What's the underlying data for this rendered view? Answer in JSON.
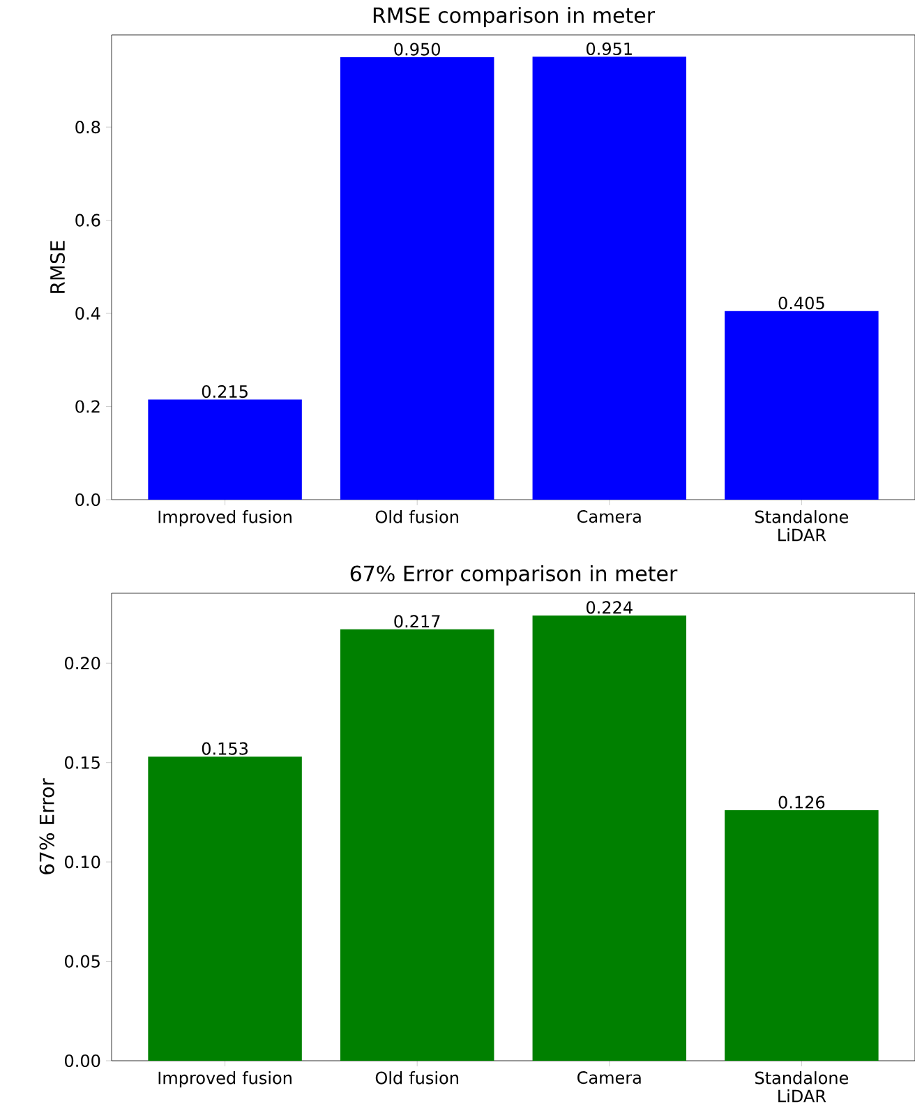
{
  "chart_data": [
    {
      "type": "bar",
      "title": "RMSE comparison in meter",
      "ylabel": "RMSE",
      "categories": [
        "Improved fusion",
        "Old fusion",
        "Camera",
        "Standalone LiDAR"
      ],
      "values": [
        0.215,
        0.95,
        0.951,
        0.405
      ],
      "value_labels": [
        "0.215",
        "0.950",
        "0.951",
        "0.405"
      ],
      "color": "#0000ff",
      "ylim": [
        0,
        0.998
      ],
      "yticks": [
        {
          "value": 0,
          "label": "0.0"
        },
        {
          "value": 0.2,
          "label": "0.2"
        },
        {
          "value": 0.4,
          "label": "0.4"
        },
        {
          "value": 0.6,
          "label": "0.6"
        },
        {
          "value": 0.8,
          "label": "0.8"
        }
      ],
      "grid": false
    },
    {
      "type": "bar",
      "title": "67% Error comparison in meter",
      "ylabel": "67% Error",
      "categories": [
        "Improved fusion",
        "Old fusion",
        "Camera",
        "Standalone LiDAR"
      ],
      "values": [
        0.153,
        0.217,
        0.224,
        0.126
      ],
      "value_labels": [
        "0.153",
        "0.217",
        "0.224",
        "0.126"
      ],
      "color": "#008000",
      "ylim": [
        0,
        0.2352
      ],
      "yticks": [
        {
          "value": 0,
          "label": "0.00"
        },
        {
          "value": 0.05,
          "label": "0.05"
        },
        {
          "value": 0.1,
          "label": "0.10"
        },
        {
          "value": 0.15,
          "label": "0.15"
        },
        {
          "value": 0.2,
          "label": "0.20"
        }
      ],
      "grid": false
    }
  ]
}
